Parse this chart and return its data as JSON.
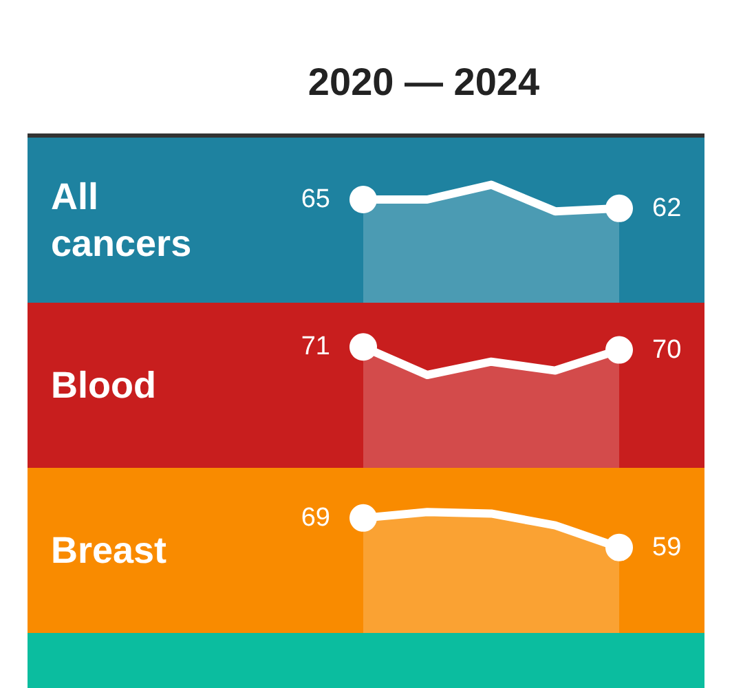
{
  "chart_data": [
    {
      "type": "area",
      "title": "2020 — 2024",
      "ylabel": "All cancers",
      "categories": [
        null,
        null,
        null,
        null,
        null
      ],
      "ylim": [
        30,
        86
      ],
      "tick_labels": false,
      "series": [
        {
          "color": "#ffffff",
          "values": [
            65,
            65,
            70,
            61,
            62
          ],
          "value_labels": [
            "65",
            null,
            null,
            null,
            "62"
          ]
        }
      ],
      "bands": [
        {
          "axis": "y",
          "from": 30,
          "to": 86,
          "color": "#1e82a0"
        }
      ]
    },
    {
      "type": "area",
      "ylabel": "Blood",
      "categories": [
        null,
        null,
        null,
        null,
        null
      ],
      "ylim": [
        30,
        86
      ],
      "tick_labels": false,
      "series": [
        {
          "color": "#ffffff",
          "values": [
            71,
            61.5,
            66,
            63,
            70
          ],
          "value_labels": [
            "71",
            null,
            null,
            null,
            "70"
          ]
        }
      ],
      "bands": [
        {
          "axis": "y",
          "from": 30,
          "to": 86,
          "color": "#c81e1e"
        }
      ]
    },
    {
      "type": "area",
      "ylabel": "Breast",
      "categories": [
        null,
        null,
        null,
        null,
        null
      ],
      "ylim": [
        30,
        86
      ],
      "tick_labels": false,
      "series": [
        {
          "color": "#ffffff",
          "values": [
            69,
            71,
            70.5,
            66.5,
            59
          ],
          "value_labels": [
            "69",
            null,
            null,
            null,
            "59"
          ]
        }
      ],
      "bands": [
        {
          "axis": "y",
          "from": 30,
          "to": 86,
          "color": "#f98b00"
        }
      ]
    }
  ]
}
